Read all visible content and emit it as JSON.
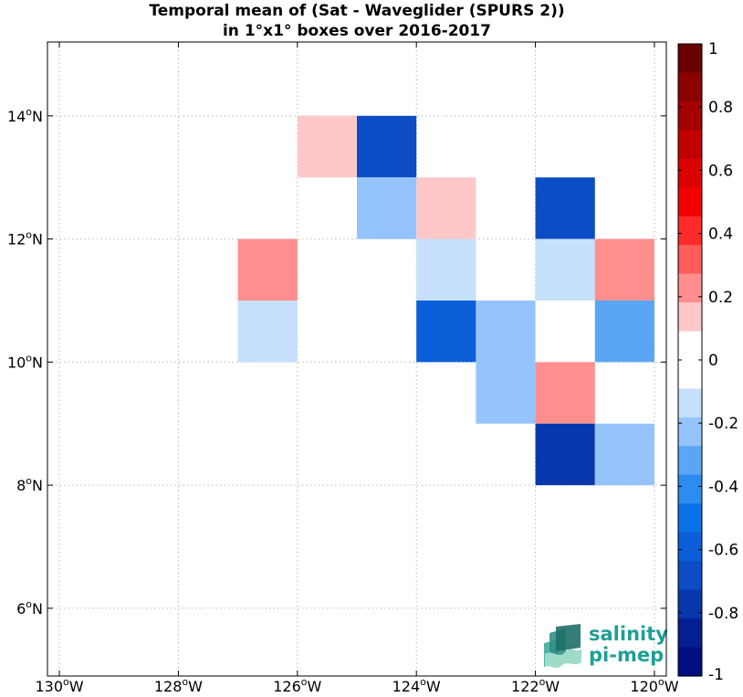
{
  "chart_data": {
    "type": "heatmap",
    "title_lines": [
      "Temporal mean of (Sat - Waveglider (SPURS 2))",
      "in 1°x1° boxes over 2016-2017"
    ],
    "xlim": [
      -130.2,
      -119.8
    ],
    "ylim": [
      4.9,
      15.2
    ],
    "x_ticks": [
      {
        "value": -130,
        "deg": "130",
        "hem": "W"
      },
      {
        "value": -128,
        "deg": "128",
        "hem": "W"
      },
      {
        "value": -126,
        "deg": "126",
        "hem": "W"
      },
      {
        "value": -124,
        "deg": "124",
        "hem": "W"
      },
      {
        "value": -122,
        "deg": "122",
        "hem": "W"
      },
      {
        "value": -120,
        "deg": "120",
        "hem": "W"
      }
    ],
    "y_ticks": [
      {
        "value": 6,
        "deg": "6",
        "hem": "N"
      },
      {
        "value": 8,
        "deg": "8",
        "hem": "N"
      },
      {
        "value": 10,
        "deg": "10",
        "hem": "N"
      },
      {
        "value": 12,
        "deg": "12",
        "hem": "N"
      },
      {
        "value": 14,
        "deg": "14",
        "hem": "N"
      }
    ],
    "grid": true,
    "cells": [
      {
        "lon": -125.5,
        "lat": 13.5,
        "value": 0.15
      },
      {
        "lon": -124.5,
        "lat": 13.5,
        "value": -0.65
      },
      {
        "lon": -124.5,
        "lat": 12.5,
        "value": -0.25
      },
      {
        "lon": -123.5,
        "lat": 12.5,
        "value": 0.15
      },
      {
        "lon": -121.5,
        "lat": 12.5,
        "value": -0.65
      },
      {
        "lon": -126.5,
        "lat": 11.5,
        "value": 0.25
      },
      {
        "lon": -123.5,
        "lat": 11.5,
        "value": -0.15
      },
      {
        "lon": -121.5,
        "lat": 11.5,
        "value": -0.15
      },
      {
        "lon": -120.5,
        "lat": 11.5,
        "value": 0.25
      },
      {
        "lon": -126.5,
        "lat": 10.5,
        "value": -0.15
      },
      {
        "lon": -123.5,
        "lat": 10.5,
        "value": -0.55
      },
      {
        "lon": -122.5,
        "lat": 10.5,
        "value": -0.25
      },
      {
        "lon": -121.5,
        "lat": 10.5,
        "value": 0.0
      },
      {
        "lon": -120.5,
        "lat": 10.5,
        "value": -0.35
      },
      {
        "lon": -122.5,
        "lat": 9.5,
        "value": -0.25
      },
      {
        "lon": -121.5,
        "lat": 9.5,
        "value": 0.25
      },
      {
        "lon": -121.5,
        "lat": 8.5,
        "value": -0.75
      },
      {
        "lon": -120.5,
        "lat": 8.5,
        "value": -0.25
      }
    ],
    "colorbar": {
      "range": [
        -1,
        1
      ],
      "tick_labels": [
        "1",
        "0.8",
        "0.6",
        "0.4",
        "0.2",
        "0",
        "-0.2",
        "-0.4",
        "-0.6",
        "-0.8",
        "-1"
      ],
      "colors_top_to_bottom": [
        "#6b0000",
        "#8b0000",
        "#a50000",
        "#c00000",
        "#dc0000",
        "#f20000",
        "#ff2a2a",
        "#ff5c5c",
        "#ff8f8f",
        "#ffc8c8",
        "#ffffff",
        "#ffffff",
        "#c7e0fc",
        "#94c4fb",
        "#5aa6f5",
        "#2d8cf0",
        "#0a72e8",
        "#0b5fd8",
        "#0c4cc4",
        "#0836ad",
        "#051f93",
        "#000f80"
      ]
    }
  },
  "logo": {
    "line1": "salinity",
    "line2": "pi-mep"
  }
}
